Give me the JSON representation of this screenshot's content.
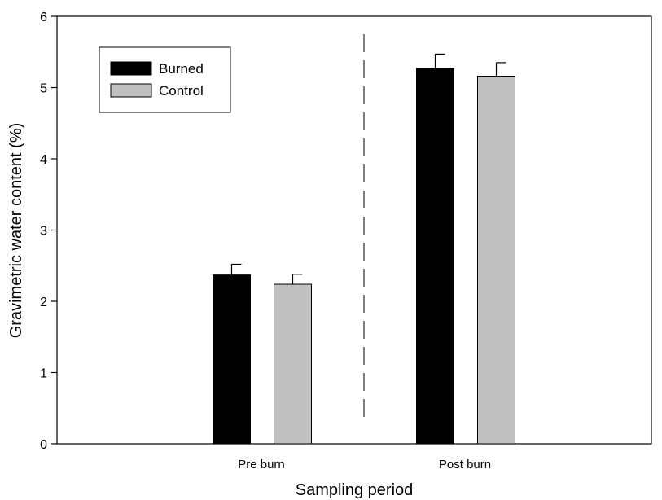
{
  "chart_data": {
    "type": "bar",
    "categories": [
      "Pre burn",
      "Post burn"
    ],
    "series": [
      {
        "name": "Burned",
        "values": [
          2.37,
          5.27
        ],
        "errors": [
          0.15,
          0.2
        ],
        "color": "#000000"
      },
      {
        "name": "Control",
        "values": [
          2.24,
          5.16
        ],
        "errors": [
          0.14,
          0.19
        ],
        "color": "#c0c0c0"
      }
    ],
    "xlabel": "Sampling period",
    "ylabel": "Gravimetric water content (%)",
    "ylim": [
      0,
      6
    ],
    "yticks": [
      "0",
      "1",
      "2",
      "3",
      "4",
      "5",
      "6"
    ],
    "legend": {
      "placement": "top-left"
    },
    "divider": "dashed vertical line between sampling periods",
    "grid": false
  }
}
